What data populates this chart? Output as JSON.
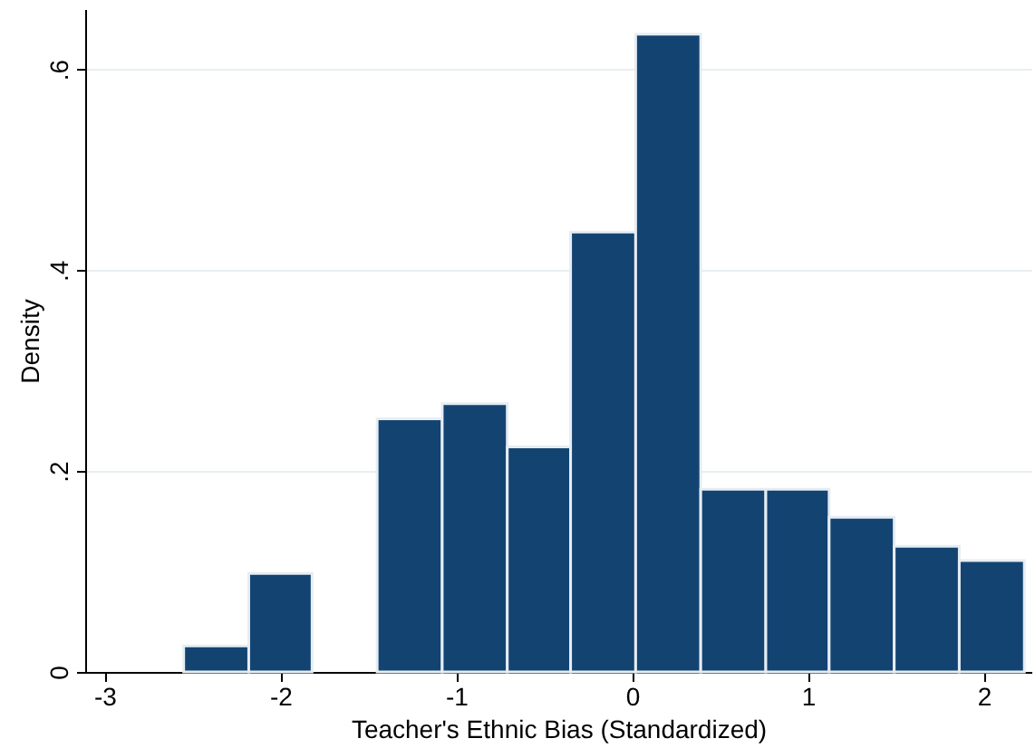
{
  "chart_data": {
    "type": "histogram",
    "xlabel": "Teacher's Ethnic Bias (Standardized)",
    "ylabel": "Density",
    "bins": [
      -2.55,
      -2.18,
      -1.82,
      -1.45,
      -1.08,
      -0.71,
      -0.35,
      0.02,
      0.39,
      0.76,
      1.12,
      1.49,
      1.86,
      2.23
    ],
    "values": [
      0.026,
      0.098,
      0,
      0.252,
      0.267,
      0.224,
      0.438,
      0.635,
      0.182,
      0.182,
      0.154,
      0.125,
      0.111
    ],
    "color": "#134471",
    "xlim": [
      -3.11,
      2.27
    ],
    "ylim": [
      0,
      0.66
    ],
    "xticks": [
      -3,
      -2,
      -1,
      0,
      1,
      2
    ],
    "yticks": [
      0,
      {
        "value": 0.2,
        "label": ".2"
      },
      {
        "value": 0.4,
        "label": ".4"
      },
      {
        "value": 0.6,
        "label": ".6"
      }
    ],
    "grid": "y"
  }
}
